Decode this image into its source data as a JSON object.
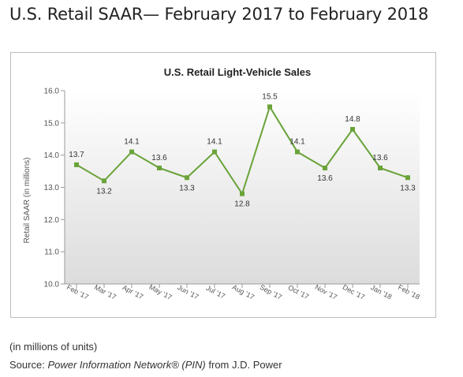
{
  "page": {
    "title": "U.S. Retail SAAR— February 2017 to February 2018",
    "units_note": "(in millions of units)",
    "source": {
      "label": "Source:",
      "name": "Power Information Network® (PIN)",
      "suffix": "from J.D. Power"
    }
  },
  "chart_data": {
    "type": "line",
    "title": "U.S. Retail Light-Vehicle Sales",
    "xlabel": "",
    "ylabel": "Retail SAAR (in millions)",
    "categories": [
      "Feb '17",
      "Mar '17",
      "Apr '17",
      "May '17",
      "Jun '17",
      "Jul '17",
      "Aug '17",
      "Sep '17",
      "Oct '17",
      "Nov '17",
      "Dec '17",
      "Jan '18",
      "Feb '18"
    ],
    "series": [
      {
        "values": [
          13.7,
          13.2,
          14.1,
          13.6,
          13.3,
          14.1,
          12.8,
          15.5,
          14.1,
          13.6,
          14.8,
          13.6,
          13.3
        ],
        "labels": [
          "13.7",
          "13.2",
          "14.1",
          "13.6",
          "13.3",
          "14.1",
          "12.8",
          "15.5",
          "14.1",
          "13.6",
          "14.8",
          "13.6",
          "13.3"
        ],
        "color": "#6aa33a"
      }
    ],
    "ylim": [
      10.0,
      16.0
    ],
    "yticks": [
      "10.0",
      "11.0",
      "12.0",
      "13.0",
      "14.0",
      "15.0",
      "16.0"
    ],
    "grid": false,
    "legend": "none",
    "background": "gradient-grey"
  }
}
